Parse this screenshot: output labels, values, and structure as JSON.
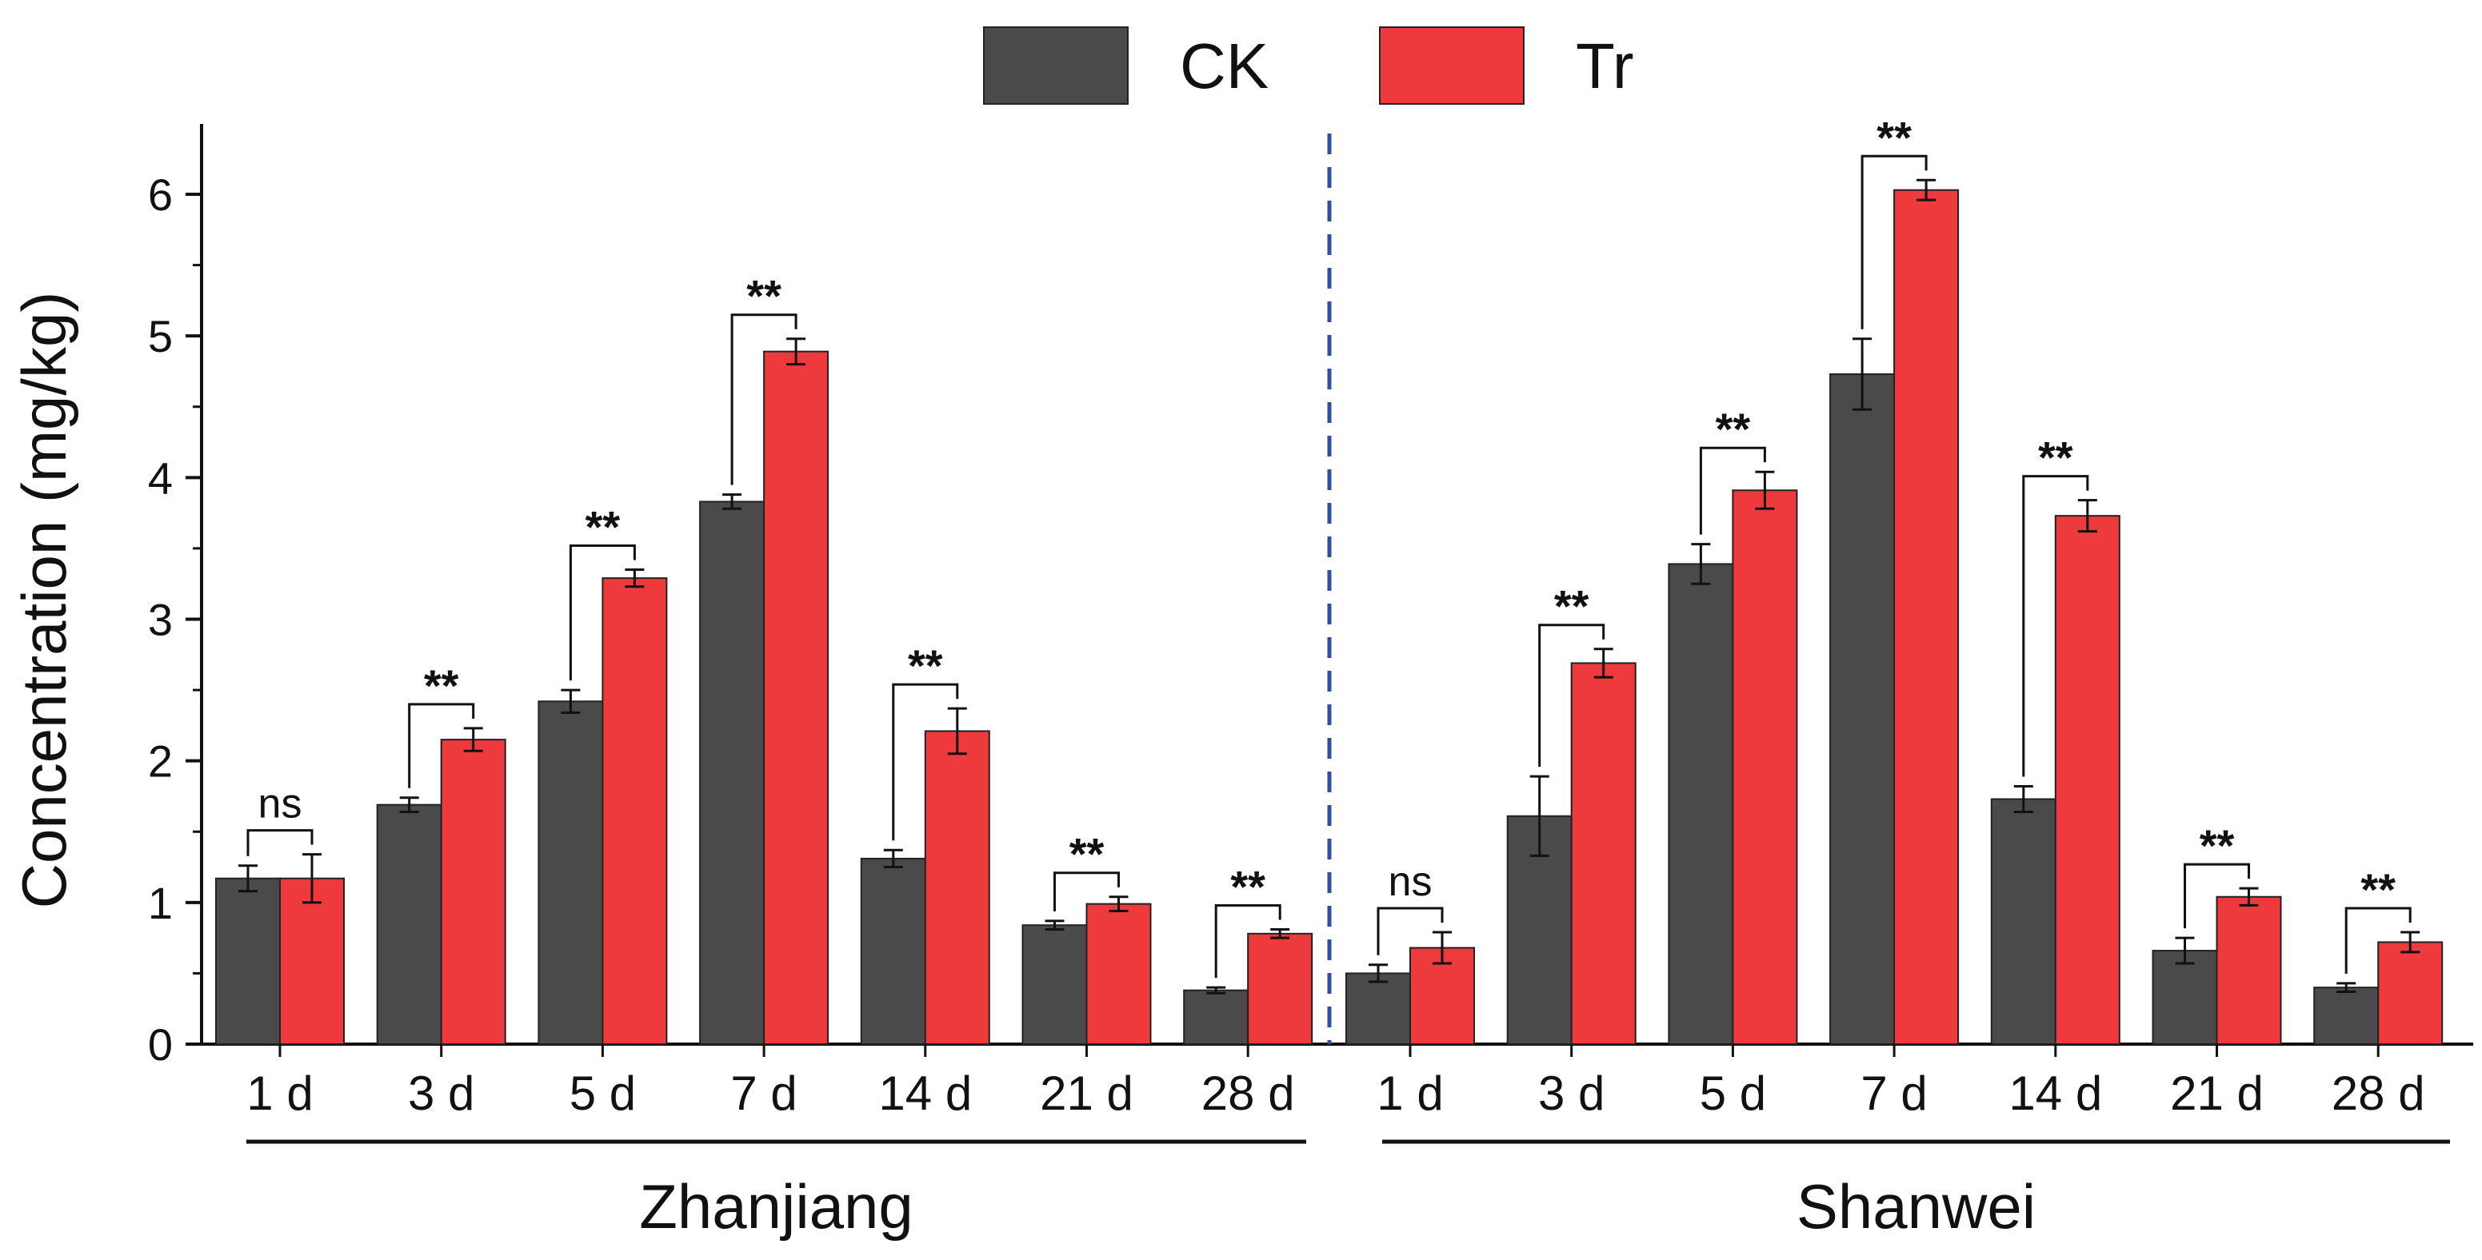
{
  "chart_data": {
    "type": "bar",
    "title": "",
    "xlabel": "",
    "ylabel": "Concentration (mg/kg)",
    "ylim": [
      0,
      6.5
    ],
    "yticks": [
      0,
      1,
      2,
      3,
      4,
      5,
      6
    ],
    "legend_position": "top-center",
    "grid": false,
    "colors": {
      "CK": "#4a4a4a",
      "Tr": "#ee3a3d",
      "divider": "#2f4fa0"
    },
    "series": [
      {
        "name": "CK"
      },
      {
        "name": "Tr"
      }
    ],
    "groups": [
      {
        "name": "Zhanjiang",
        "categories": [
          "1 d",
          "3 d",
          "5 d",
          "7 d",
          "14 d",
          "21 d",
          "28 d"
        ],
        "CK": [
          1.17,
          1.69,
          2.42,
          3.83,
          1.31,
          0.84,
          0.38
        ],
        "CK_err": [
          0.09,
          0.05,
          0.08,
          0.05,
          0.06,
          0.03,
          0.02
        ],
        "Tr": [
          1.17,
          2.15,
          3.29,
          4.89,
          2.21,
          0.99,
          0.78
        ],
        "Tr_err": [
          0.17,
          0.08,
          0.06,
          0.09,
          0.16,
          0.05,
          0.03
        ],
        "significance": [
          "ns",
          "**",
          "**",
          "**",
          "**",
          "**",
          "**"
        ]
      },
      {
        "name": "Shanwei",
        "categories": [
          "1 d",
          "3 d",
          "5 d",
          "7 d",
          "14 d",
          "21 d",
          "28 d"
        ],
        "CK": [
          0.5,
          1.61,
          3.39,
          4.73,
          1.73,
          0.66,
          0.4
        ],
        "CK_err": [
          0.06,
          0.28,
          0.14,
          0.25,
          0.09,
          0.09,
          0.03
        ],
        "Tr": [
          0.68,
          2.69,
          3.91,
          6.03,
          3.73,
          1.04,
          0.72
        ],
        "Tr_err": [
          0.11,
          0.1,
          0.13,
          0.07,
          0.11,
          0.06,
          0.07
        ],
        "significance": [
          "ns",
          "**",
          "**",
          "**",
          "**",
          "**",
          "**"
        ]
      }
    ]
  }
}
